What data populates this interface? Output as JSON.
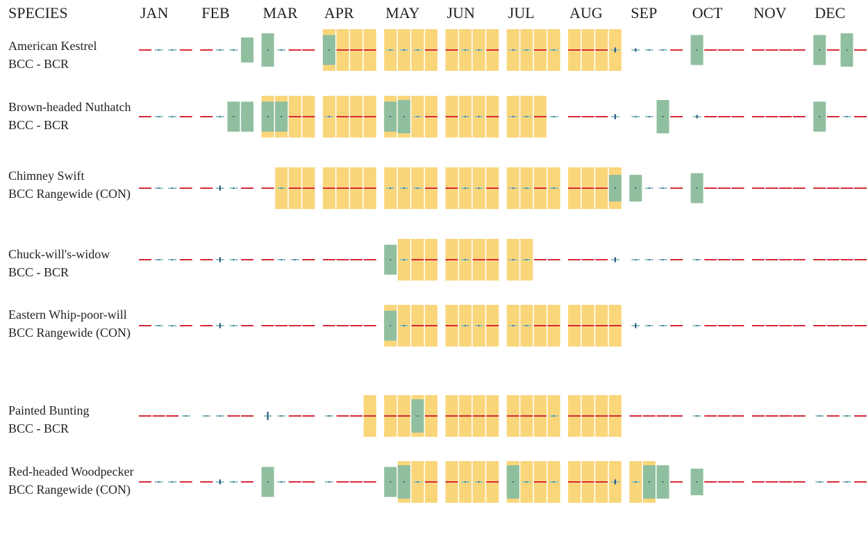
{
  "header": {
    "species": "SPECIES",
    "months": [
      "JAN",
      "FEB",
      "MAR",
      "APR",
      "MAY",
      "JUN",
      "JUL",
      "AUG",
      "SEP",
      "OCT",
      "NOV",
      "DEC"
    ]
  },
  "species": [
    {
      "name": "American Kestrel",
      "status": "BCC - BCR",
      "breeding": [
        0,
        0,
        0,
        0,
        0,
        0,
        0,
        0,
        0,
        0,
        0,
        0,
        1,
        1,
        1,
        1,
        1,
        1,
        1,
        1,
        1,
        1,
        1,
        1,
        1,
        1,
        1,
        1,
        1,
        1,
        1,
        1,
        0,
        0,
        0,
        0,
        0,
        0,
        0,
        0,
        0,
        0,
        0,
        0,
        0,
        0,
        0,
        0
      ],
      "presence": [
        0,
        0,
        0,
        0,
        0,
        0,
        0,
        7.5,
        10,
        0,
        0,
        0,
        9,
        0,
        0,
        0,
        0,
        0,
        0,
        0,
        0,
        0,
        0,
        0,
        0,
        0,
        0,
        0,
        0,
        0,
        0,
        1.5,
        1,
        0,
        0,
        0,
        9,
        0,
        0,
        0,
        0,
        0,
        0,
        0,
        9,
        0,
        10,
        0
      ],
      "survey": [
        0,
        1,
        1,
        0,
        0,
        1,
        1,
        0,
        1,
        1,
        0,
        0,
        1,
        0,
        0,
        0,
        1,
        1,
        1,
        0,
        0,
        1,
        1,
        0,
        1,
        1,
        0,
        1,
        0,
        0,
        0,
        1,
        1,
        1,
        1,
        0,
        1,
        0,
        0,
        0,
        0,
        0,
        0,
        0,
        1,
        0,
        1,
        0
      ]
    },
    {
      "name": "Brown-headed Nuthatch",
      "status": "BCC - BCR",
      "breeding": [
        0,
        0,
        0,
        0,
        0,
        0,
        0,
        0,
        1,
        1,
        1,
        1,
        1,
        1,
        1,
        1,
        1,
        1,
        1,
        1,
        1,
        1,
        1,
        1,
        1,
        1,
        1,
        0,
        0,
        0,
        0,
        0,
        0,
        0,
        0,
        0,
        0,
        0,
        0,
        0,
        0,
        0,
        0,
        0,
        0,
        0,
        0,
        0
      ],
      "presence": [
        0,
        0,
        0,
        0,
        0,
        0,
        9,
        9,
        9,
        9,
        0,
        0,
        0,
        0,
        0,
        0,
        9,
        10,
        0,
        0,
        0,
        0,
        0,
        0,
        0,
        0,
        0,
        0,
        0,
        0,
        0,
        1.5,
        0,
        0,
        10,
        0,
        1,
        0,
        0,
        0,
        0,
        0,
        0,
        0,
        9,
        0,
        0,
        0
      ],
      "survey": [
        0,
        1,
        1,
        0,
        0,
        1,
        1,
        0,
        1,
        1,
        0,
        0,
        1,
        0,
        0,
        0,
        1,
        1,
        1,
        0,
        0,
        1,
        1,
        0,
        1,
        1,
        0,
        1,
        0,
        0,
        0,
        1,
        1,
        1,
        1,
        0,
        1,
        0,
        0,
        0,
        0,
        0,
        0,
        0,
        1,
        0,
        1,
        0
      ]
    },
    {
      "name": "Chimney Swift",
      "status": "BCC Rangewide (CON)",
      "breeding": [
        0,
        0,
        0,
        0,
        0,
        0,
        0,
        0,
        0,
        1,
        1,
        1,
        1,
        1,
        1,
        1,
        1,
        1,
        1,
        1,
        1,
        1,
        1,
        1,
        1,
        1,
        1,
        1,
        1,
        1,
        1,
        1,
        0,
        0,
        0,
        0,
        0,
        0,
        0,
        0,
        0,
        0,
        0,
        0,
        0,
        0,
        0,
        0
      ],
      "presence": [
        0,
        0,
        0,
        0,
        0,
        1.5,
        0,
        0,
        0,
        0,
        0,
        0,
        0,
        0,
        0,
        0,
        0,
        0,
        0,
        0,
        0,
        0,
        0,
        0,
        0,
        0,
        0,
        0,
        0,
        0,
        0,
        8,
        8,
        0,
        0,
        0,
        9,
        0,
        0,
        0,
        0,
        0,
        0,
        0,
        0,
        0,
        0,
        0
      ],
      "survey": [
        0,
        1,
        1,
        0,
        0,
        1,
        1,
        0,
        0,
        1,
        0,
        0,
        0,
        0,
        0,
        0,
        1,
        1,
        1,
        0,
        0,
        1,
        1,
        0,
        1,
        1,
        0,
        1,
        0,
        0,
        0,
        1,
        1,
        1,
        1,
        0,
        1,
        0,
        0,
        0,
        0,
        0,
        0,
        0,
        0,
        0,
        0,
        0
      ]
    },
    {
      "name": "Chuck-will's-widow",
      "status": "BCC - BCR",
      "breeding": [
        0,
        0,
        0,
        0,
        0,
        0,
        0,
        0,
        0,
        0,
        0,
        0,
        0,
        0,
        0,
        0,
        0,
        1,
        1,
        1,
        1,
        1,
        1,
        1,
        1,
        1,
        0,
        0,
        0,
        0,
        0,
        0,
        0,
        0,
        0,
        0,
        0,
        0,
        0,
        0,
        0,
        0,
        0,
        0,
        0,
        0,
        0,
        0
      ],
      "presence": [
        0,
        0,
        0,
        0,
        0,
        1.5,
        0,
        0,
        0,
        0,
        0,
        0,
        0,
        0,
        0,
        0,
        9,
        0,
        0,
        0,
        0,
        0,
        0,
        0,
        0,
        0,
        0,
        0,
        0,
        0,
        0,
        1.5,
        0,
        0,
        0,
        0,
        0,
        0,
        0,
        0,
        0,
        0,
        0,
        0,
        0,
        0,
        0,
        0
      ],
      "survey": [
        0,
        1,
        1,
        0,
        0,
        1,
        1,
        0,
        0,
        1,
        1,
        0,
        0,
        0,
        0,
        0,
        1,
        1,
        0,
        0,
        0,
        1,
        0,
        0,
        1,
        1,
        0,
        0,
        0,
        0,
        0,
        1,
        1,
        1,
        1,
        0,
        1,
        0,
        0,
        0,
        0,
        0,
        0,
        0,
        0,
        0,
        0,
        0
      ]
    },
    {
      "name": "Eastern Whip-poor-will",
      "status": "BCC Rangewide (CON)",
      "breeding": [
        0,
        0,
        0,
        0,
        0,
        0,
        0,
        0,
        0,
        0,
        0,
        0,
        0,
        0,
        0,
        0,
        1,
        1,
        1,
        1,
        1,
        1,
        1,
        1,
        1,
        1,
        1,
        1,
        1,
        1,
        1,
        1,
        0,
        0,
        0,
        0,
        0,
        0,
        0,
        0,
        0,
        0,
        0,
        0,
        0,
        0,
        0,
        0
      ],
      "presence": [
        0,
        0,
        0,
        0,
        0,
        1.5,
        0,
        0,
        0,
        0,
        0,
        0,
        0,
        0,
        0,
        0,
        9,
        0,
        0,
        0,
        0,
        0,
        0,
        0,
        0,
        0,
        0,
        0,
        0,
        0,
        0,
        0,
        1.5,
        0,
        0,
        0,
        0,
        0,
        0,
        0,
        0,
        0,
        0,
        0,
        0,
        0,
        0,
        0
      ],
      "survey": [
        0,
        1,
        1,
        0,
        0,
        1,
        1,
        0,
        0,
        0,
        0,
        0,
        0,
        0,
        0,
        0,
        1,
        1,
        0,
        0,
        0,
        1,
        1,
        0,
        1,
        1,
        0,
        0,
        0,
        0,
        0,
        0,
        1,
        1,
        1,
        0,
        1,
        0,
        0,
        0,
        0,
        0,
        0,
        0,
        0,
        0,
        0,
        0
      ]
    },
    {
      "name": "Painted Bunting",
      "status": "BCC - BCR",
      "breeding": [
        0,
        0,
        0,
        0,
        0,
        0,
        0,
        0,
        0,
        0,
        0,
        0,
        0,
        0,
        0,
        1,
        1,
        1,
        1,
        1,
        1,
        1,
        1,
        1,
        1,
        1,
        1,
        1,
        1,
        1,
        1,
        1,
        0,
        0,
        0,
        0,
        0,
        0,
        0,
        0,
        0,
        0,
        0,
        0,
        0,
        0,
        0,
        0
      ],
      "presence": [
        0,
        0,
        0,
        0,
        0,
        0,
        0,
        0,
        2.5,
        0,
        0,
        0,
        0,
        0,
        0,
        0,
        0,
        0,
        10,
        0,
        0,
        0,
        0,
        0,
        0,
        0,
        0,
        0,
        0,
        0,
        0,
        0,
        0,
        0,
        0,
        0,
        0,
        0,
        0,
        0,
        0,
        0,
        0,
        0,
        0,
        0,
        0,
        0
      ],
      "survey": [
        0,
        0,
        0,
        1,
        1,
        1,
        0,
        0,
        1,
        1,
        0,
        0,
        1,
        0,
        0,
        0,
        0,
        0,
        1,
        0,
        0,
        0,
        0,
        0,
        0,
        0,
        0,
        1,
        0,
        0,
        0,
        0,
        0,
        0,
        0,
        0,
        1,
        0,
        0,
        0,
        0,
        0,
        0,
        0,
        1,
        0,
        1,
        0
      ]
    },
    {
      "name": "Red-headed Woodpecker",
      "status": "BCC Rangewide (CON)",
      "breeding": [
        0,
        0,
        0,
        0,
        0,
        0,
        0,
        0,
        0,
        0,
        0,
        0,
        0,
        0,
        0,
        0,
        0,
        1,
        1,
        1,
        1,
        1,
        1,
        1,
        1,
        1,
        1,
        1,
        1,
        1,
        1,
        1,
        1,
        1,
        0,
        0,
        0,
        0,
        0,
        0,
        0,
        0,
        0,
        0,
        0,
        0,
        0,
        0
      ],
      "presence": [
        0,
        0,
        0,
        0,
        0,
        1.5,
        0,
        0,
        9,
        0,
        0,
        0,
        0,
        0,
        0,
        0,
        9,
        10,
        0,
        0,
        0,
        0,
        0,
        0,
        10,
        0,
        0,
        0,
        0,
        0,
        0,
        1.5,
        0,
        10,
        10,
        0,
        8,
        0,
        0,
        0,
        0,
        0,
        0,
        0,
        0,
        0,
        0,
        0
      ],
      "survey": [
        0,
        1,
        1,
        0,
        0,
        1,
        1,
        0,
        1,
        1,
        0,
        0,
        1,
        0,
        0,
        0,
        1,
        1,
        1,
        0,
        0,
        1,
        1,
        0,
        1,
        1,
        0,
        1,
        0,
        0,
        0,
        1,
        1,
        1,
        1,
        0,
        1,
        0,
        0,
        0,
        0,
        0,
        0,
        0,
        1,
        0,
        1,
        0
      ]
    }
  ]
}
